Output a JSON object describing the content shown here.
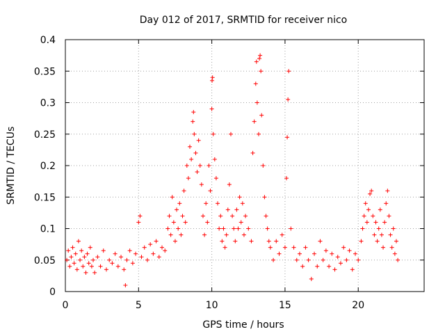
{
  "chart_data": {
    "type": "scatter",
    "title": "Day 012 of 2017, SRMTID for receiver nico",
    "xlabel": "GPS time / hours",
    "ylabel": "SRMTID / TECUs",
    "xlim": [
      0,
      24.5
    ],
    "ylim": [
      0,
      0.4
    ],
    "x_ticks": [
      0,
      5,
      10,
      15,
      20
    ],
    "x_tick_labels": [
      "0",
      "5",
      "10",
      "15",
      "20"
    ],
    "y_ticks": [
      0,
      0.05,
      0.1,
      0.15,
      0.2,
      0.25,
      0.3,
      0.35,
      0.4
    ],
    "y_tick_labels": [
      "0",
      "0.05",
      "0.1",
      "0.15",
      "0.2",
      "0.25",
      "0.3",
      "0.35",
      "0.4"
    ],
    "grid": true,
    "marker": "+",
    "series": [
      {
        "name": "SRMTID",
        "color": "#ff0000",
        "points": [
          [
            0.1,
            0.05
          ],
          [
            0.2,
            0.065
          ],
          [
            0.3,
            0.04
          ],
          [
            0.4,
            0.055
          ],
          [
            0.5,
            0.07
          ],
          [
            0.6,
            0.045
          ],
          [
            0.7,
            0.06
          ],
          [
            0.8,
            0.035
          ],
          [
            0.9,
            0.08
          ],
          [
            1.0,
            0.05
          ],
          [
            1.1,
            0.065
          ],
          [
            1.2,
            0.04
          ],
          [
            1.3,
            0.055
          ],
          [
            1.4,
            0.03
          ],
          [
            1.5,
            0.06
          ],
          [
            1.6,
            0.045
          ],
          [
            1.7,
            0.07
          ],
          [
            1.8,
            0.04
          ],
          [
            1.9,
            0.05
          ],
          [
            2.0,
            0.03
          ],
          [
            2.2,
            0.055
          ],
          [
            2.4,
            0.04
          ],
          [
            2.6,
            0.065
          ],
          [
            2.8,
            0.035
          ],
          [
            3.0,
            0.05
          ],
          [
            3.2,
            0.045
          ],
          [
            3.4,
            0.06
          ],
          [
            3.6,
            0.04
          ],
          [
            3.8,
            0.055
          ],
          [
            4.0,
            0.035
          ],
          [
            4.1,
            0.01
          ],
          [
            4.2,
            0.05
          ],
          [
            4.4,
            0.065
          ],
          [
            4.6,
            0.045
          ],
          [
            4.8,
            0.06
          ],
          [
            5.0,
            0.11
          ],
          [
            5.1,
            0.12
          ],
          [
            5.2,
            0.055
          ],
          [
            5.4,
            0.07
          ],
          [
            5.6,
            0.05
          ],
          [
            5.8,
            0.075
          ],
          [
            6.0,
            0.06
          ],
          [
            6.2,
            0.08
          ],
          [
            6.4,
            0.055
          ],
          [
            6.6,
            0.07
          ],
          [
            6.8,
            0.065
          ],
          [
            7.0,
            0.1
          ],
          [
            7.1,
            0.12
          ],
          [
            7.2,
            0.09
          ],
          [
            7.3,
            0.15
          ],
          [
            7.4,
            0.11
          ],
          [
            7.5,
            0.08
          ],
          [
            7.6,
            0.13
          ],
          [
            7.7,
            0.1
          ],
          [
            7.8,
            0.14
          ],
          [
            7.9,
            0.09
          ],
          [
            8.0,
            0.12
          ],
          [
            8.1,
            0.16
          ],
          [
            8.2,
            0.11
          ],
          [
            8.3,
            0.2
          ],
          [
            8.4,
            0.18
          ],
          [
            8.5,
            0.23
          ],
          [
            8.6,
            0.21
          ],
          [
            8.7,
            0.27
          ],
          [
            8.75,
            0.285
          ],
          [
            8.8,
            0.25
          ],
          [
            8.9,
            0.22
          ],
          [
            9.0,
            0.19
          ],
          [
            9.1,
            0.24
          ],
          [
            9.2,
            0.2
          ],
          [
            9.3,
            0.17
          ],
          [
            9.4,
            0.12
          ],
          [
            9.5,
            0.09
          ],
          [
            9.6,
            0.14
          ],
          [
            9.7,
            0.11
          ],
          [
            9.8,
            0.2
          ],
          [
            9.9,
            0.16
          ],
          [
            10.0,
            0.29
          ],
          [
            10.02,
            0.335
          ],
          [
            10.05,
            0.34
          ],
          [
            10.1,
            0.25
          ],
          [
            10.2,
            0.21
          ],
          [
            10.3,
            0.18
          ],
          [
            10.4,
            0.14
          ],
          [
            10.5,
            0.1
          ],
          [
            10.6,
            0.12
          ],
          [
            10.7,
            0.08
          ],
          [
            10.8,
            0.1
          ],
          [
            10.9,
            0.07
          ],
          [
            11.0,
            0.09
          ],
          [
            11.1,
            0.13
          ],
          [
            11.2,
            0.17
          ],
          [
            11.3,
            0.25
          ],
          [
            11.4,
            0.12
          ],
          [
            11.5,
            0.1
          ],
          [
            11.6,
            0.08
          ],
          [
            11.7,
            0.13
          ],
          [
            11.8,
            0.1
          ],
          [
            11.9,
            0.15
          ],
          [
            12.0,
            0.11
          ],
          [
            12.1,
            0.14
          ],
          [
            12.2,
            0.09
          ],
          [
            12.3,
            0.12
          ],
          [
            12.5,
            0.1
          ],
          [
            12.7,
            0.08
          ],
          [
            12.8,
            0.22
          ],
          [
            12.9,
            0.27
          ],
          [
            13.0,
            0.33
          ],
          [
            13.05,
            0.365
          ],
          [
            13.1,
            0.3
          ],
          [
            13.2,
            0.25
          ],
          [
            13.25,
            0.37
          ],
          [
            13.3,
            0.375
          ],
          [
            13.35,
            0.35
          ],
          [
            13.4,
            0.28
          ],
          [
            13.5,
            0.2
          ],
          [
            13.6,
            0.15
          ],
          [
            13.7,
            0.12
          ],
          [
            13.8,
            0.1
          ],
          [
            13.9,
            0.08
          ],
          [
            14.0,
            0.07
          ],
          [
            14.2,
            0.05
          ],
          [
            14.4,
            0.08
          ],
          [
            14.6,
            0.06
          ],
          [
            14.8,
            0.09
          ],
          [
            15.0,
            0.07
          ],
          [
            15.1,
            0.18
          ],
          [
            15.15,
            0.245
          ],
          [
            15.2,
            0.305
          ],
          [
            15.25,
            0.35
          ],
          [
            15.4,
            0.1
          ],
          [
            15.6,
            0.07
          ],
          [
            15.8,
            0.05
          ],
          [
            16.0,
            0.06
          ],
          [
            16.2,
            0.04
          ],
          [
            16.4,
            0.07
          ],
          [
            16.6,
            0.05
          ],
          [
            16.8,
            0.02
          ],
          [
            17.0,
            0.06
          ],
          [
            17.2,
            0.04
          ],
          [
            17.4,
            0.08
          ],
          [
            17.6,
            0.05
          ],
          [
            17.8,
            0.065
          ],
          [
            18.0,
            0.04
          ],
          [
            18.2,
            0.06
          ],
          [
            18.4,
            0.035
          ],
          [
            18.6,
            0.055
          ],
          [
            18.8,
            0.045
          ],
          [
            19.0,
            0.07
          ],
          [
            19.2,
            0.05
          ],
          [
            19.4,
            0.065
          ],
          [
            19.6,
            0.035
          ],
          [
            19.8,
            0.06
          ],
          [
            20.0,
            0.05
          ],
          [
            20.2,
            0.08
          ],
          [
            20.3,
            0.1
          ],
          [
            20.4,
            0.12
          ],
          [
            20.5,
            0.14
          ],
          [
            20.6,
            0.11
          ],
          [
            20.7,
            0.13
          ],
          [
            20.8,
            0.155
          ],
          [
            20.9,
            0.16
          ],
          [
            21.0,
            0.12
          ],
          [
            21.1,
            0.09
          ],
          [
            21.2,
            0.11
          ],
          [
            21.3,
            0.08
          ],
          [
            21.4,
            0.1
          ],
          [
            21.5,
            0.13
          ],
          [
            21.6,
            0.09
          ],
          [
            21.7,
            0.07
          ],
          [
            21.8,
            0.11
          ],
          [
            21.9,
            0.14
          ],
          [
            22.0,
            0.16
          ],
          [
            22.1,
            0.12
          ],
          [
            22.2,
            0.09
          ],
          [
            22.3,
            0.07
          ],
          [
            22.4,
            0.1
          ],
          [
            22.5,
            0.06
          ],
          [
            22.6,
            0.08
          ],
          [
            22.7,
            0.05
          ]
        ]
      }
    ]
  }
}
